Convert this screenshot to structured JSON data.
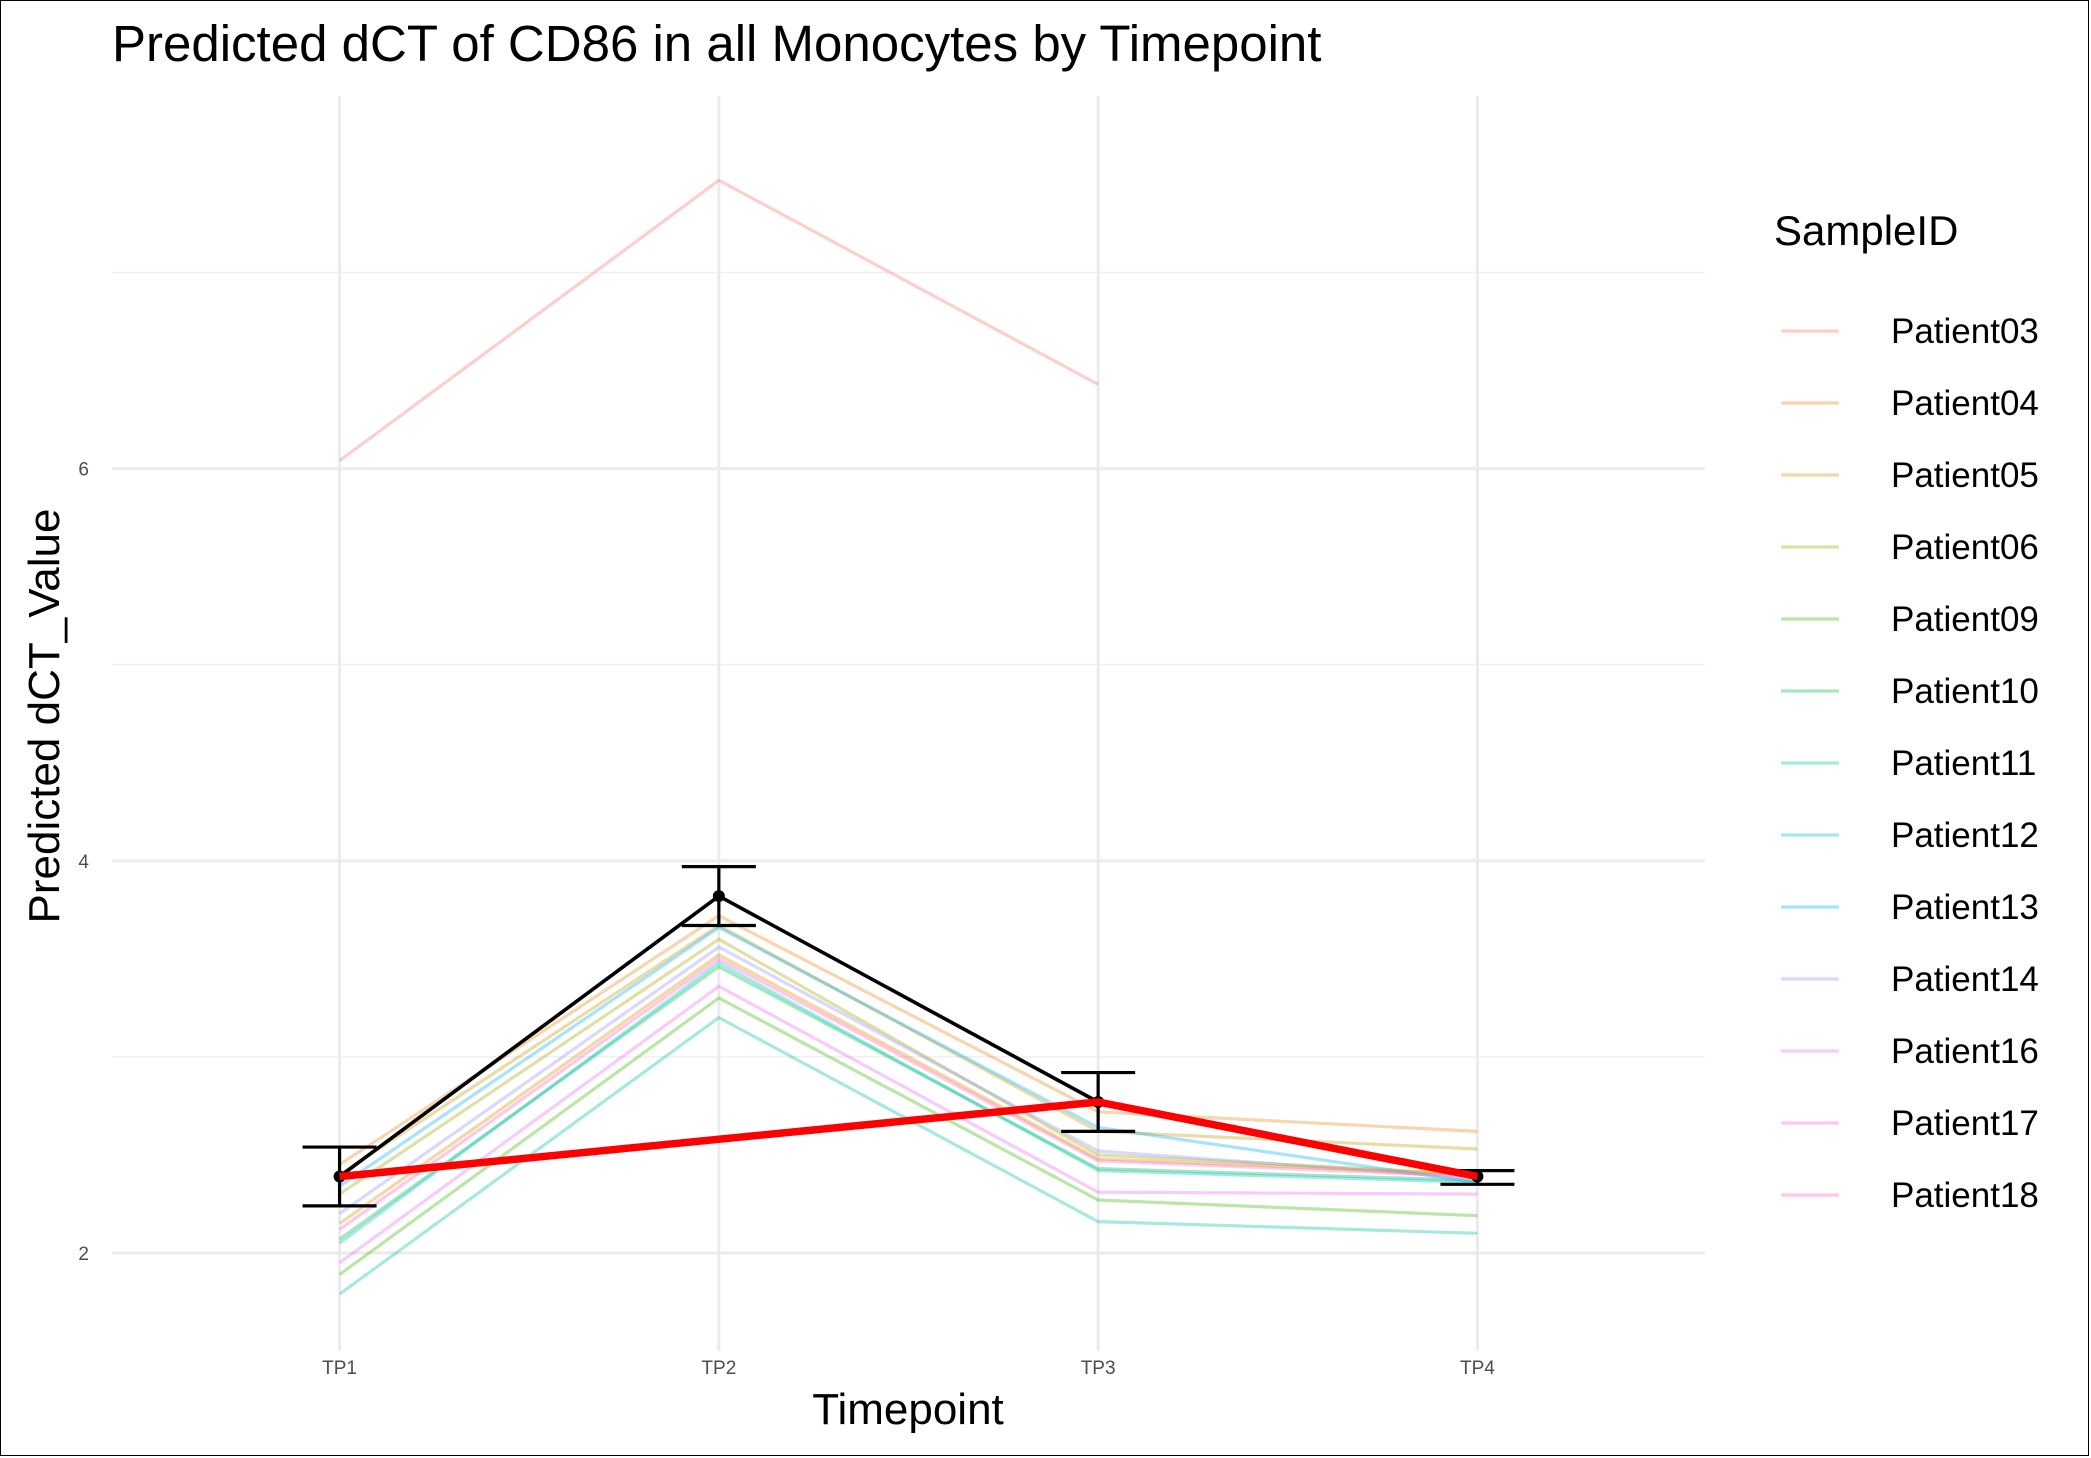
{
  "chart_data": {
    "type": "line",
    "title": "Predicted dCT of  CD86 in  all  Monocytes by Timepoint",
    "xlabel": "Timepoint",
    "ylabel": "Predicted dCT_Value",
    "categories": [
      "TP1",
      "TP2",
      "TP3",
      "TP4"
    ],
    "xlim": [
      0.4,
      4.6
    ],
    "ylim": [
      1.5,
      7.9
    ],
    "yticks": [
      2,
      4,
      6
    ],
    "minor_yticks": [
      3,
      5,
      7
    ],
    "grid": true,
    "legend": {
      "title": "SampleID",
      "position": "right"
    },
    "series": [
      {
        "name": "Patient03",
        "color": "#F8766D",
        "values": [
          6.04,
          7.47,
          6.43,
          null
        ]
      },
      {
        "name": "Patient04",
        "color": "#E7861B",
        "values": [
          2.45,
          3.72,
          2.72,
          2.62
        ]
      },
      {
        "name": "Patient05",
        "color": "#C99800",
        "values": [
          2.4,
          3.67,
          2.62,
          2.53
        ]
      },
      {
        "name": "Patient06",
        "color": "#A3A500",
        "values": [
          2.3,
          3.6,
          2.5,
          2.4
        ]
      },
      {
        "name": "Patient09",
        "color": "#39B600",
        "values": [
          1.89,
          3.3,
          2.27,
          2.19
        ]
      },
      {
        "name": "Patient10",
        "color": "#00BB4E",
        "values": [
          2.07,
          3.46,
          2.43,
          2.37
        ]
      },
      {
        "name": "Patient11",
        "color": "#00BFA0",
        "values": [
          1.79,
          3.2,
          2.16,
          2.1
        ]
      },
      {
        "name": "Patient12",
        "color": "#00BFC4",
        "values": [
          2.05,
          3.48,
          2.42,
          2.36
        ]
      },
      {
        "name": "Patient13",
        "color": "#00B0F6",
        "values": [
          2.34,
          3.66,
          2.64,
          2.36
        ]
      },
      {
        "name": "Patient14",
        "color": "#9590FF",
        "values": [
          2.2,
          3.56,
          2.52,
          2.38
        ]
      },
      {
        "name": "Patient16",
        "color": "#D89000",
        "values": [
          2.15,
          3.52,
          2.48,
          2.4
        ]
      },
      {
        "name": "Patient17",
        "color": "#E76BF3",
        "values": [
          1.95,
          3.36,
          2.31,
          2.3
        ]
      },
      {
        "name": "Patient18",
        "color": "#FF62BC",
        "values": [
          2.12,
          3.5,
          2.47,
          2.39
        ]
      }
    ],
    "legend_colors": [
      "#F8766D",
      "#E7861B",
      "#C99800",
      "#A3A500",
      "#39B600",
      "#00BB4E",
      "#00BFA0",
      "#00BFC4",
      "#00B0F6",
      "#9590FF",
      "#E76BF3",
      "#F564E3",
      "#FF62BC"
    ],
    "mean": {
      "color": "#000000",
      "values": [
        2.39,
        3.82,
        2.77,
        2.39
      ],
      "lower": [
        2.24,
        3.67,
        2.62,
        2.35
      ],
      "upper": [
        2.54,
        3.97,
        2.92,
        2.42
      ]
    },
    "trend": {
      "color": "#FF0000",
      "values": [
        2.39,
        null,
        2.77,
        2.39
      ]
    }
  }
}
